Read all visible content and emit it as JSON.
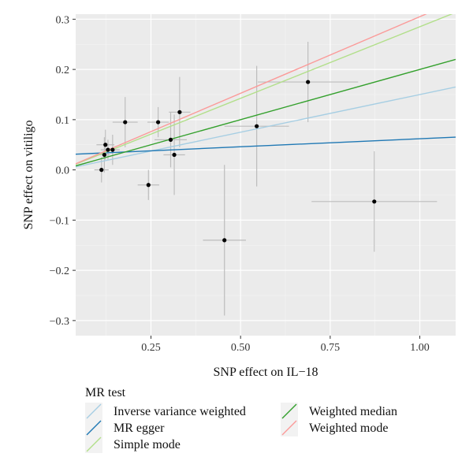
{
  "chart_data": {
    "type": "scatter",
    "xlabel": "SNP effect on IL−18",
    "ylabel": "SNP effect on vitiligo",
    "xlim": [
      0.04,
      1.1
    ],
    "ylim": [
      -0.33,
      0.31
    ],
    "x_ticks": [
      {
        "value": 0.25,
        "label": "0.25"
      },
      {
        "value": 0.5,
        "label": "0.50"
      },
      {
        "value": 0.75,
        "label": "0.75"
      },
      {
        "value": 1.0,
        "label": "1.00"
      }
    ],
    "y_ticks": [
      {
        "value": -0.3,
        "label": "−0.3"
      },
      {
        "value": -0.2,
        "label": "−0.2"
      },
      {
        "value": -0.1,
        "label": "−0.1"
      },
      {
        "value": 0.0,
        "label": "0.0"
      },
      {
        "value": 0.1,
        "label": "0.1"
      },
      {
        "value": 0.2,
        "label": "0.2"
      },
      {
        "value": 0.3,
        "label": "0.3"
      }
    ],
    "grid": true,
    "points": [
      {
        "x": 0.112,
        "y": 0.0,
        "x_err": 0.02,
        "y_err": 0.025
      },
      {
        "x": 0.12,
        "y": 0.03,
        "x_err": 0.015,
        "y_err": 0.035
      },
      {
        "x": 0.123,
        "y": 0.05,
        "x_err": 0.025,
        "y_err": 0.03
      },
      {
        "x": 0.13,
        "y": 0.04,
        "x_err": 0.02,
        "y_err": 0.02
      },
      {
        "x": 0.143,
        "y": 0.04,
        "x_err": 0.02,
        "y_err": 0.03
      },
      {
        "x": 0.178,
        "y": 0.095,
        "x_err": 0.035,
        "y_err": 0.05
      },
      {
        "x": 0.243,
        "y": -0.03,
        "x_err": 0.03,
        "y_err": 0.03
      },
      {
        "x": 0.27,
        "y": 0.095,
        "x_err": 0.03,
        "y_err": 0.03
      },
      {
        "x": 0.305,
        "y": 0.06,
        "x_err": 0.045,
        "y_err": 0.055
      },
      {
        "x": 0.315,
        "y": 0.03,
        "x_err": 0.03,
        "y_err": 0.08
      },
      {
        "x": 0.33,
        "y": 0.115,
        "x_err": 0.03,
        "y_err": 0.07
      },
      {
        "x": 0.455,
        "y": -0.14,
        "x_err": 0.06,
        "y_err": 0.15
      },
      {
        "x": 0.545,
        "y": 0.087,
        "x_err": 0.09,
        "y_err": 0.12
      },
      {
        "x": 0.688,
        "y": 0.175,
        "x_err": 0.14,
        "y_err": 0.08
      },
      {
        "x": 0.873,
        "y": -0.063,
        "x_err": 0.175,
        "y_err": 0.1
      }
    ],
    "legend_title": "MR test",
    "legend_position": "bottom",
    "series": [
      {
        "name": "Inverse variance weighted",
        "color": "#a6cee3",
        "intercept": 0.0,
        "slope": 0.15
      },
      {
        "name": "MR egger",
        "color": "#1f78b4",
        "intercept": 0.03,
        "slope": 0.032
      },
      {
        "name": "Simple mode",
        "color": "#b2df8a",
        "intercept": 0.0,
        "slope": 0.285
      },
      {
        "name": "Weighted median",
        "color": "#33a02c",
        "intercept": 0.0,
        "slope": 0.2
      },
      {
        "name": "Weighted mode",
        "color": "#fb9a99",
        "intercept": 0.0,
        "slope": 0.305
      }
    ]
  }
}
